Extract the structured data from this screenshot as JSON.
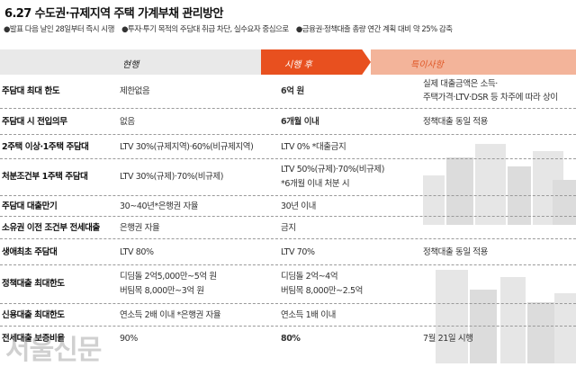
{
  "title": "6.27 수도권·규제지역 주택 가계부채 관리방안",
  "notes": [
    "●발표 다음 날인 28일부터 즉시 시행",
    "●투자·투기 목적의 주담대 취급 차단, 실수요자 중심으로",
    "●금융권·정책대출 총량 연간 계획 대비 약 25% 감축"
  ],
  "header": {
    "current": "현행",
    "after": "시행 후",
    "special": "특이사항"
  },
  "rows": [
    {
      "label": "주담대 최대 한도",
      "current": [
        "제한없음"
      ],
      "after": [
        "6억 원"
      ],
      "note": [
        "실제 대출금액은 소득·",
        "주택가격·LTV·DSR 등 차주에 따라 상이"
      ]
    },
    {
      "label": "주담대 시 전입의무",
      "current": [
        "없음"
      ],
      "after": [
        "6개월 이내"
      ],
      "note": [
        "정책대출 동일 적용"
      ]
    },
    {
      "label": "2주택 이상·1주택 주담대",
      "current": [
        "LTV 30%(규제지역)·60%(비규제지역)"
      ],
      "after": [
        "LTV 0%  *대출금지"
      ],
      "note": []
    },
    {
      "label": "처분조건부 1주택 주담대",
      "current": [
        "LTV 30%(규제)·70%(비규제)"
      ],
      "after": [
        "LTV 50%(규제)·70%(비규제)",
        "*6개월 이내 처분 시"
      ],
      "note": []
    },
    {
      "label": "주담대 대출만기",
      "current": [
        "30~40년*은행권 자율"
      ],
      "after": [
        "30년 이내"
      ],
      "note": []
    },
    {
      "label": "소유권 이전 조건부 전세대출",
      "current": [
        "은행권 자율"
      ],
      "after": [
        "금지"
      ],
      "note": []
    },
    {
      "label": "생애최초 주담대",
      "current": [
        "LTV 80%"
      ],
      "after": [
        "LTV 70%"
      ],
      "note": [
        "정책대출 동일 적용"
      ]
    },
    {
      "label": "정책대출 최대한도",
      "current": [
        "디딤돌 2억5,000만~5억 원",
        "버팀목 8,000만~3억 원"
      ],
      "after": [
        "디딤돌 2억~4억",
        "버팀목 8,000만~2.5억"
      ],
      "note": []
    },
    {
      "label": "신용대출 최대한도",
      "current": [
        "연소득 2배 이내  *은행권 자율"
      ],
      "after": [
        "연소득 1배 이내"
      ],
      "note": []
    },
    {
      "label": "전세대출 보증비율",
      "current": [
        "90%"
      ],
      "after": [
        "80%"
      ],
      "note": [
        "7월 21일 시행"
      ]
    }
  ],
  "watermark": "서울신문"
}
